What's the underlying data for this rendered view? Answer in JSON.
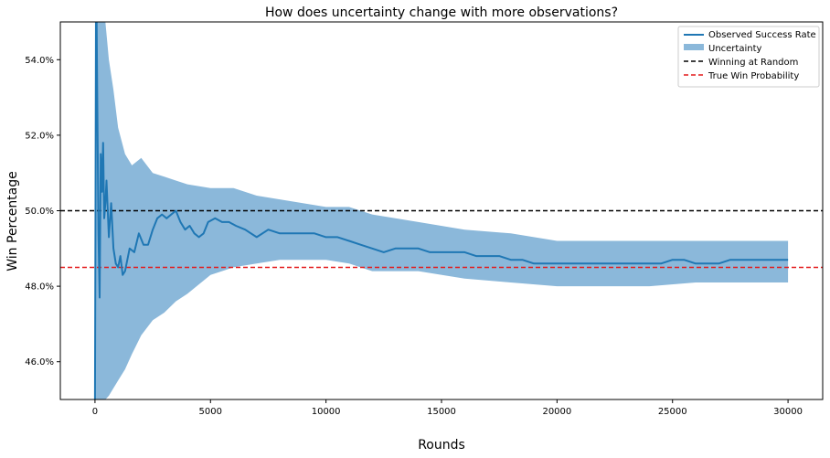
{
  "chart_data": {
    "type": "line",
    "title": "How does uncertainty change with more observations?",
    "xlabel": "Rounds",
    "ylabel": "Win Percentage",
    "xlim": [
      -1500,
      31500
    ],
    "ylim": [
      45.0,
      55.0
    ],
    "xticks": [
      0,
      5000,
      10000,
      15000,
      20000,
      25000,
      30000
    ],
    "yticks": [
      46.0,
      48.0,
      50.0,
      52.0,
      54.0
    ],
    "ytick_suffix": "%",
    "grid": false,
    "legend_position": "top-right",
    "colors": {
      "observed": "#1f77b4",
      "uncertainty": "#8bb8da",
      "random": "#000000",
      "true_prob": "#e41a1c"
    },
    "series": [
      {
        "name": "Observed Success Rate",
        "kind": "line",
        "x": [
          0,
          50,
          100,
          150,
          200,
          250,
          300,
          350,
          400,
          450,
          500,
          600,
          700,
          800,
          900,
          1000,
          1100,
          1200,
          1300,
          1400,
          1500,
          1700,
          1900,
          2100,
          2300,
          2500,
          2700,
          2900,
          3100,
          3300,
          3500,
          3700,
          3900,
          4100,
          4300,
          4500,
          4700,
          4900,
          5200,
          5500,
          5800,
          6100,
          6500,
          7000,
          7500,
          8000,
          8500,
          9000,
          9500,
          10000,
          10500,
          11000,
          11500,
          12000,
          12500,
          13000,
          13500,
          14000,
          14500,
          15000,
          15500,
          16000,
          16500,
          17000,
          17500,
          18000,
          18500,
          19000,
          19500,
          20000,
          20500,
          21000,
          21500,
          22000,
          22500,
          23000,
          23500,
          24000,
          24500,
          25000,
          25500,
          26000,
          26500,
          27000,
          27500,
          28000,
          28500,
          29000,
          29500,
          30000
        ],
        "y": [
          45.0,
          56.5,
          53.0,
          49.4,
          47.7,
          51.5,
          50.5,
          51.8,
          49.8,
          50.2,
          50.8,
          49.3,
          50.2,
          49.0,
          48.6,
          48.5,
          48.8,
          48.3,
          48.4,
          48.7,
          49.0,
          48.9,
          49.4,
          49.1,
          49.1,
          49.5,
          49.8,
          49.9,
          49.8,
          49.9,
          50.0,
          49.7,
          49.5,
          49.6,
          49.4,
          49.3,
          49.4,
          49.7,
          49.8,
          49.7,
          49.7,
          49.6,
          49.5,
          49.3,
          49.5,
          49.4,
          49.4,
          49.4,
          49.4,
          49.3,
          49.3,
          49.2,
          49.1,
          49.0,
          48.9,
          49.0,
          49.0,
          49.0,
          48.9,
          48.9,
          48.9,
          48.9,
          48.8,
          48.8,
          48.8,
          48.7,
          48.7,
          48.6,
          48.6,
          48.6,
          48.6,
          48.6,
          48.6,
          48.6,
          48.6,
          48.6,
          48.6,
          48.6,
          48.6,
          48.7,
          48.7,
          48.6,
          48.6,
          48.6,
          48.7,
          48.7,
          48.7,
          48.7,
          48.7,
          48.7
        ]
      },
      {
        "name": "Uncertainty",
        "kind": "band",
        "x": [
          0,
          150,
          300,
          450,
          600,
          800,
          1000,
          1300,
          1600,
          2000,
          2500,
          3000,
          3500,
          4000,
          5000,
          6000,
          7000,
          8000,
          9000,
          10000,
          11000,
          12000,
          14000,
          16000,
          18000,
          20000,
          22000,
          24000,
          26000,
          28000,
          30000
        ],
        "lower": [
          44.0,
          44.0,
          44.2,
          45.0,
          45.1,
          45.3,
          45.5,
          45.8,
          46.2,
          46.7,
          47.1,
          47.3,
          47.6,
          47.8,
          48.3,
          48.5,
          48.6,
          48.7,
          48.7,
          48.7,
          48.6,
          48.4,
          48.4,
          48.2,
          48.1,
          48.0,
          48.0,
          48.0,
          48.1,
          48.1,
          48.1
        ],
        "upper": [
          56.0,
          56.0,
          56.0,
          55.0,
          54.0,
          53.2,
          52.2,
          51.5,
          51.2,
          51.4,
          51.0,
          50.9,
          50.8,
          50.7,
          50.6,
          50.6,
          50.4,
          50.3,
          50.2,
          50.1,
          50.1,
          49.9,
          49.7,
          49.5,
          49.4,
          49.2,
          49.2,
          49.2,
          49.2,
          49.2,
          49.2
        ]
      },
      {
        "name": "Winning at Random",
        "kind": "hline",
        "y": 50.0
      },
      {
        "name": "True Win Probability",
        "kind": "hline",
        "y": 48.5
      }
    ]
  }
}
